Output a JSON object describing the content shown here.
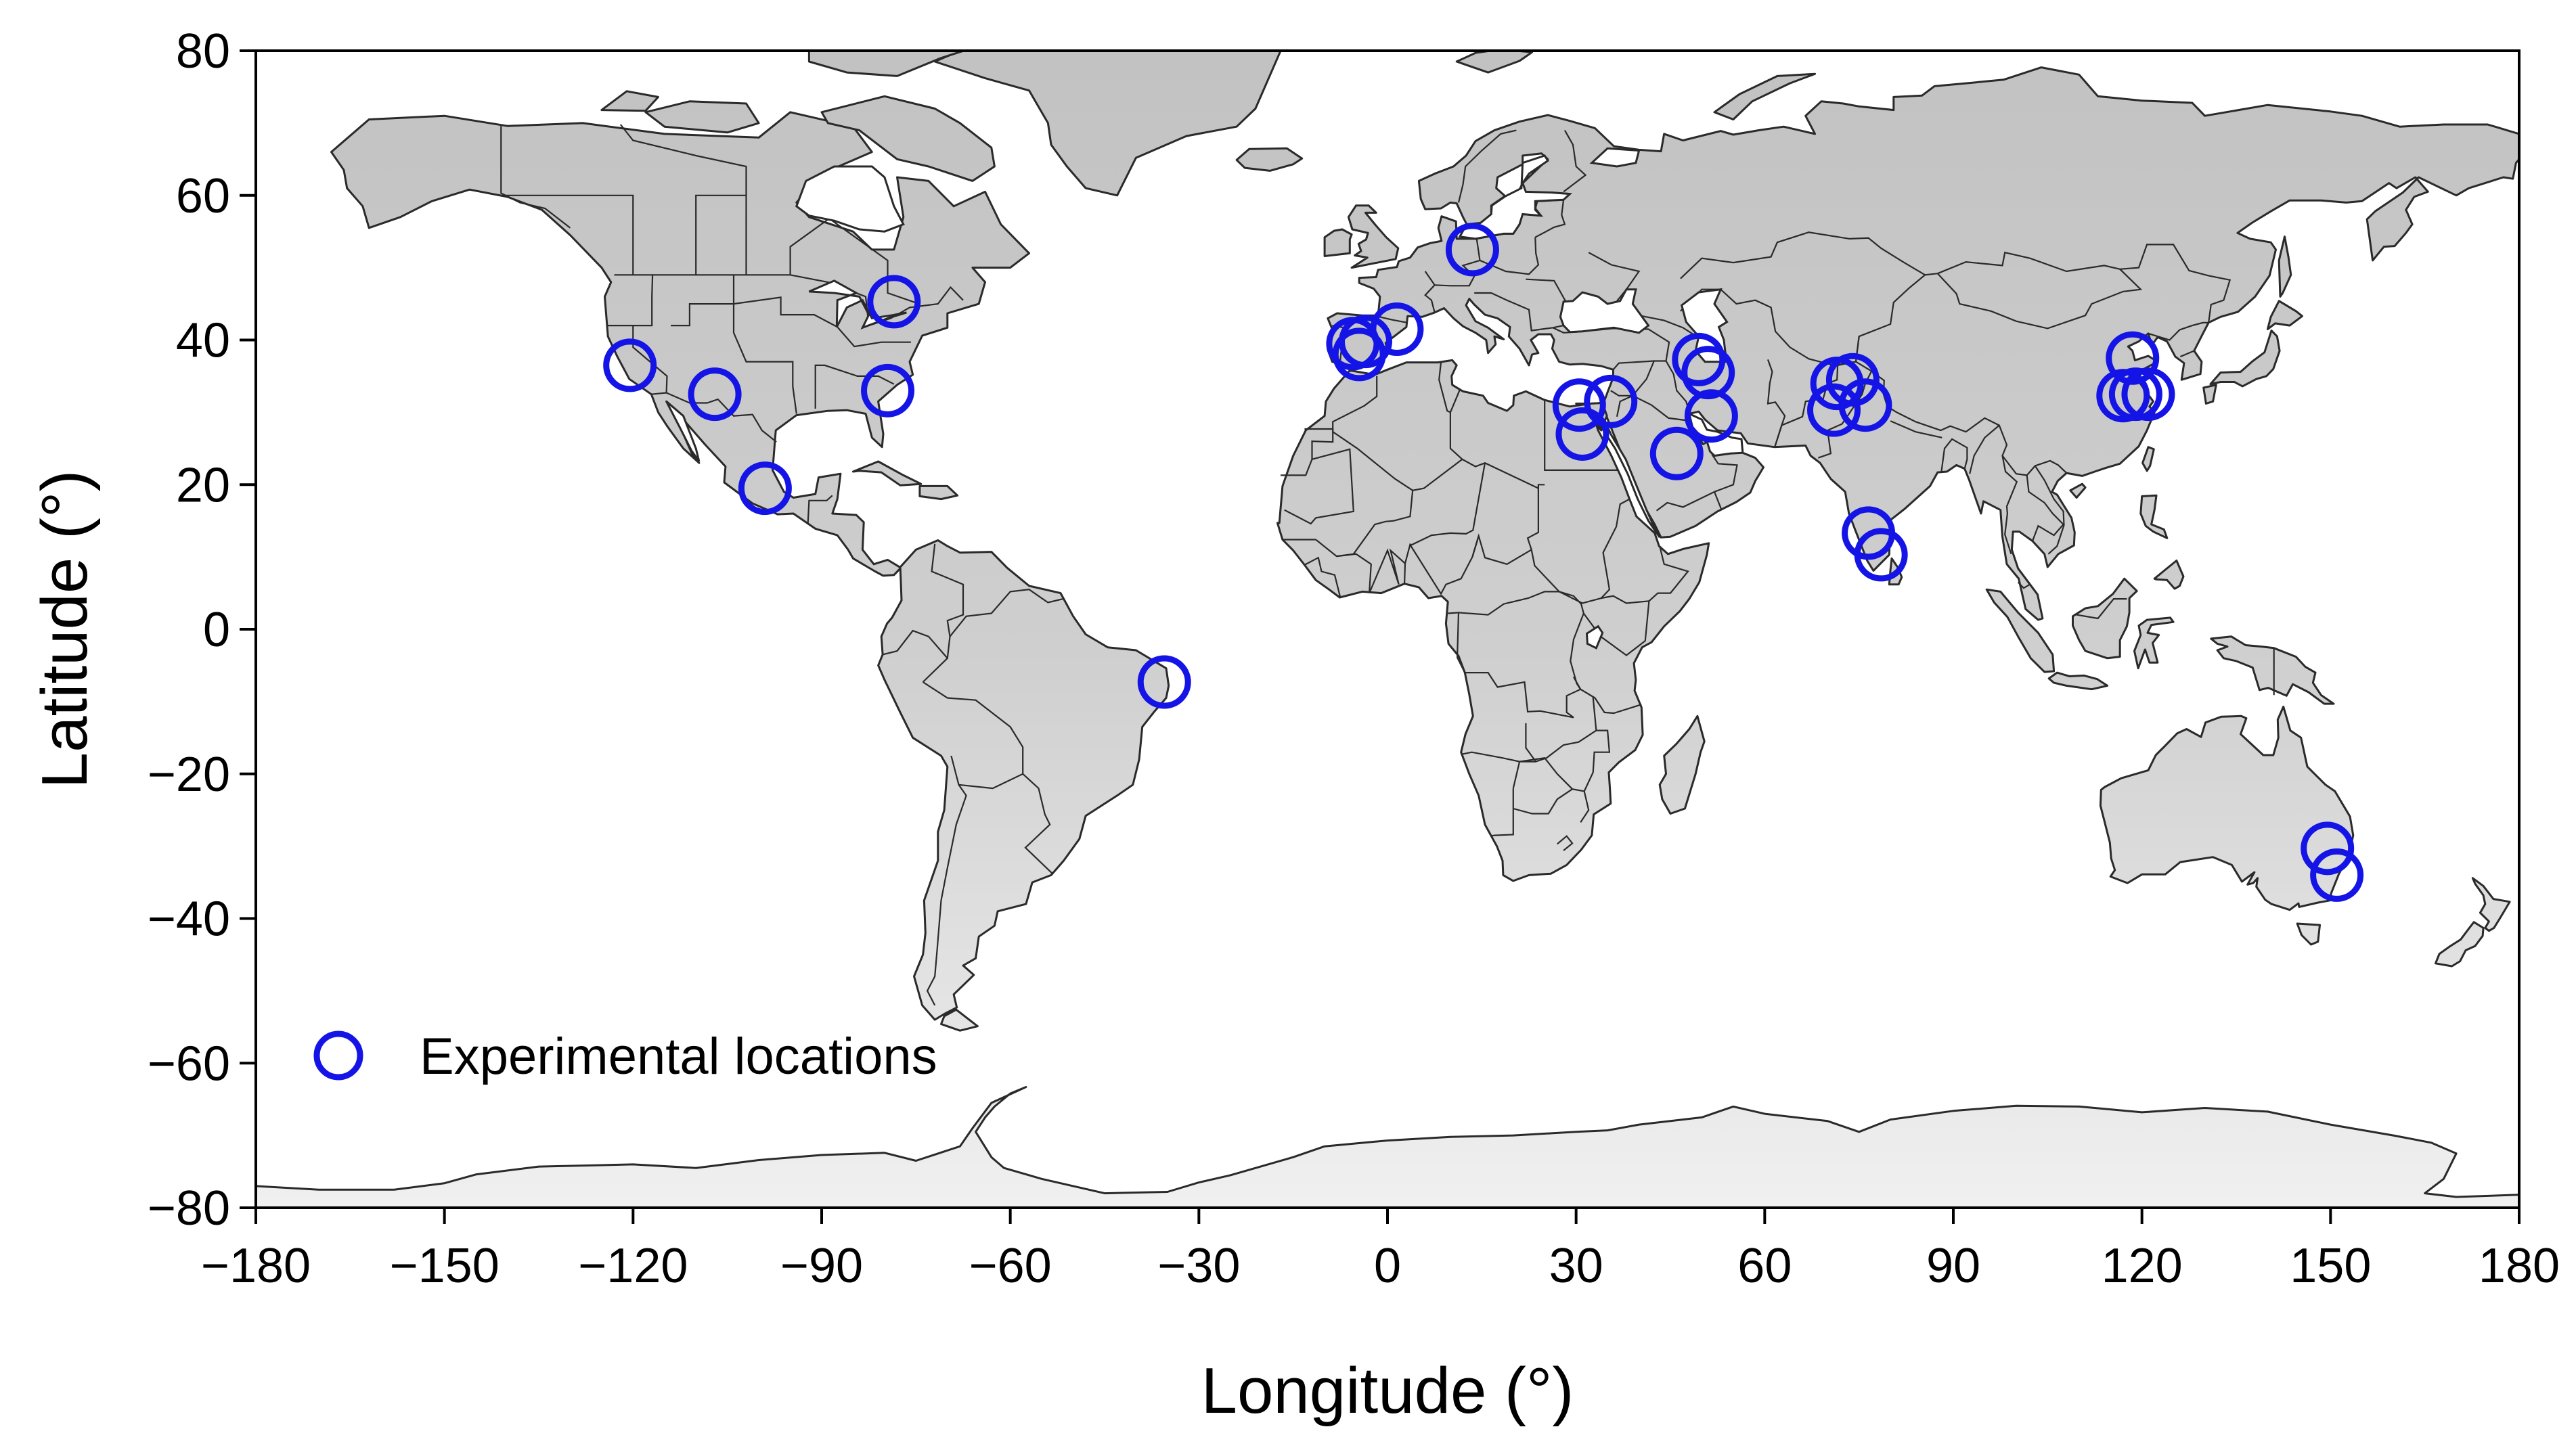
{
  "chart_data": {
    "type": "scatter",
    "xlabel": "Longitude (°)",
    "ylabel": "Latitude (°)",
    "xlim": [
      -180,
      180
    ],
    "ylim": [
      -80,
      80
    ],
    "x_ticks": [
      -180,
      -150,
      -120,
      -90,
      -60,
      -30,
      0,
      30,
      60,
      90,
      120,
      150,
      180
    ],
    "y_ticks": [
      -80,
      -60,
      -40,
      -20,
      0,
      20,
      40,
      60,
      80
    ],
    "x_tick_labels": [
      "−180",
      "−150",
      "−120",
      "−90",
      "−60",
      "−30",
      "0",
      "30",
      "60",
      "90",
      "120",
      "150",
      "180"
    ],
    "y_tick_labels": [
      "−80",
      "−60",
      "−40",
      "−20",
      "0",
      "20",
      "40",
      "60",
      "80"
    ],
    "legend": {
      "position": "bottom-left",
      "entries": [
        "Experimental locations"
      ]
    },
    "marker": {
      "shape": "open-circle",
      "color": "#1414e6"
    },
    "land_colors": {
      "north": "#c2c2c2",
      "south": "#f0f0f0",
      "outline": "#2a2a2a"
    },
    "series": [
      {
        "name": "Experimental locations",
        "points": [
          {
            "lon": -120.5,
            "lat": 36.5
          },
          {
            "lon": -107,
            "lat": 32.5
          },
          {
            "lon": -99,
            "lat": 19.5
          },
          {
            "lon": -79.5,
            "lat": 33
          },
          {
            "lon": -78.5,
            "lat": 45.3
          },
          {
            "lon": -35.5,
            "lat": -7.3
          },
          {
            "lon": -5.5,
            "lat": 39.5
          },
          {
            "lon": -4.5,
            "lat": 38
          },
          {
            "lon": -3.5,
            "lat": 39.8
          },
          {
            "lon": 1.5,
            "lat": 41.5
          },
          {
            "lon": 13.5,
            "lat": 52.5
          },
          {
            "lon": 30.5,
            "lat": 31
          },
          {
            "lon": 31,
            "lat": 27
          },
          {
            "lon": 35.5,
            "lat": 31.5
          },
          {
            "lon": 46,
            "lat": 24.3
          },
          {
            "lon": 49.5,
            "lat": 37.3
          },
          {
            "lon": 51,
            "lat": 35.5
          },
          {
            "lon": 51.5,
            "lat": 29.5
          },
          {
            "lon": 71,
            "lat": 30.3
          },
          {
            "lon": 71.5,
            "lat": 34
          },
          {
            "lon": 74,
            "lat": 34.5
          },
          {
            "lon": 76,
            "lat": 31
          },
          {
            "lon": 76.5,
            "lat": 13.3
          },
          {
            "lon": 78.5,
            "lat": 10.3
          },
          {
            "lon": 117,
            "lat": 32.3
          },
          {
            "lon": 118.5,
            "lat": 37.5
          },
          {
            "lon": 119,
            "lat": 32.5
          },
          {
            "lon": 121,
            "lat": 32.5
          },
          {
            "lon": 149.5,
            "lat": -30.3
          },
          {
            "lon": 151,
            "lat": -34
          }
        ]
      }
    ]
  }
}
